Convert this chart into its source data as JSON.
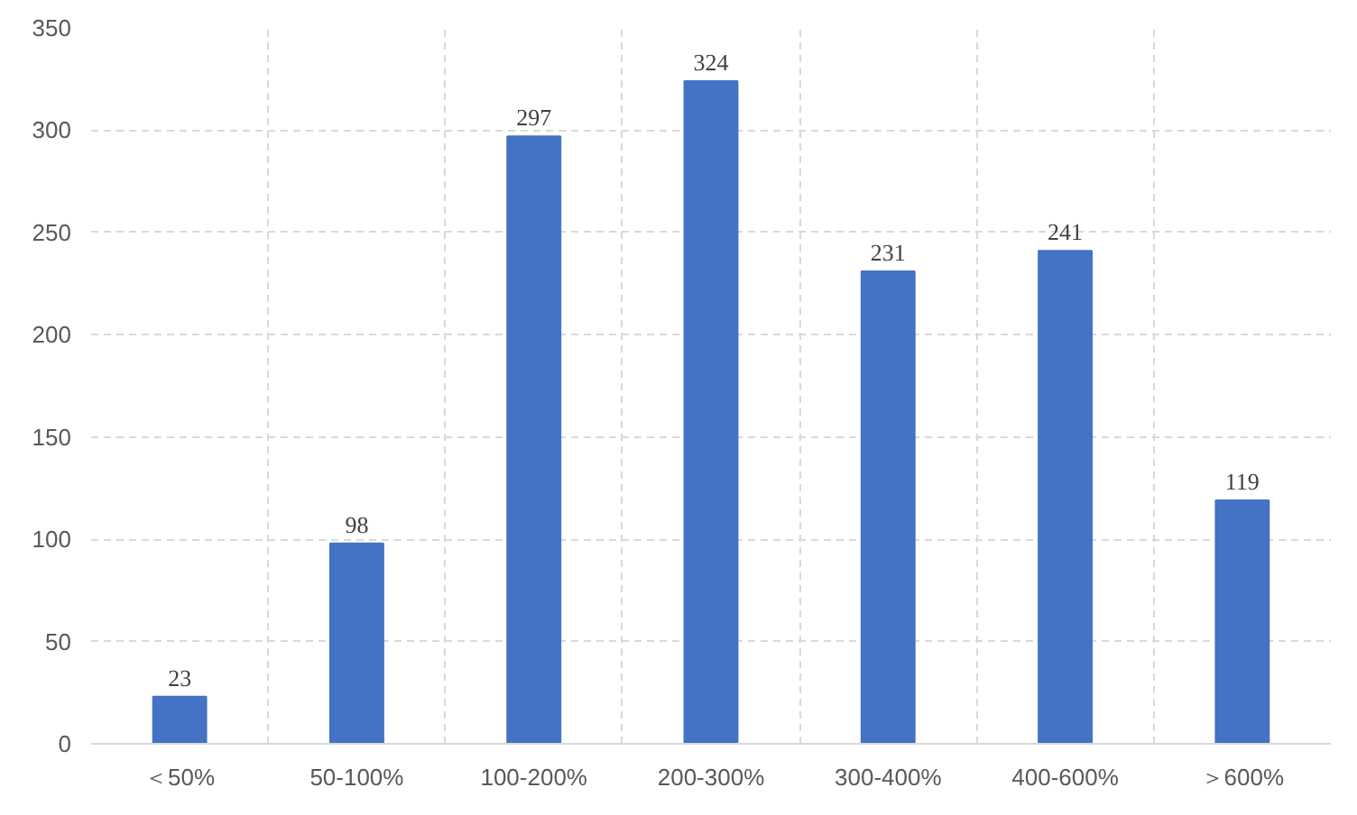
{
  "chart_data": {
    "type": "bar",
    "categories": [
      "＜50%",
      "50-100%",
      "100-200%",
      "200-300%",
      "300-400%",
      "400-600%",
      "＞600%"
    ],
    "values": [
      23,
      98,
      297,
      324,
      231,
      241,
      119
    ],
    "color": "#4472c4",
    "ylim": [
      0,
      350
    ],
    "yticks": [
      0,
      50,
      100,
      150,
      200,
      250,
      300,
      350
    ],
    "grid": true,
    "data_labels": true
  }
}
